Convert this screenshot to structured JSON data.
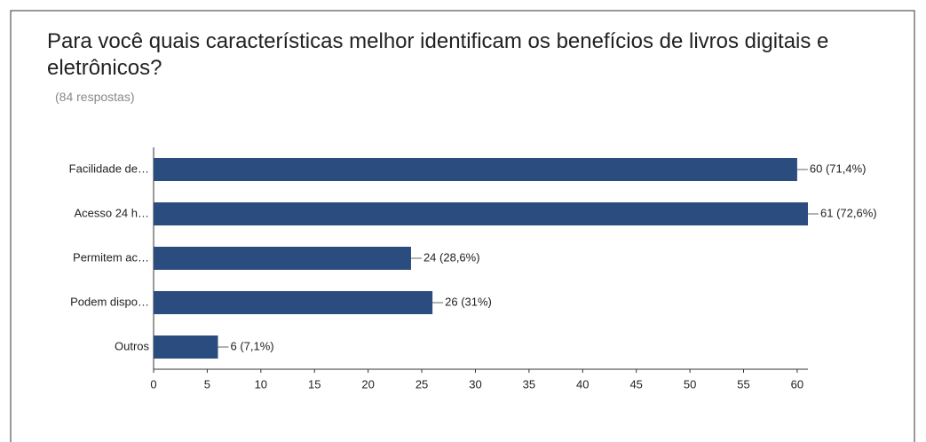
{
  "chart_data": {
    "type": "bar",
    "orientation": "horizontal",
    "title": "Para você quais características melhor identificam os benefícios de livros digitais e eletrônicos?",
    "subtitle": "(84 respostas)",
    "categories": [
      "Facilidade de…",
      "Acesso 24 h…",
      "Permitem ac…",
      "Podem dispo…",
      "Outros"
    ],
    "values": [
      60,
      61,
      24,
      26,
      6
    ],
    "value_labels": [
      "60 (71,4%)",
      "61 (72,6%)",
      "24 (28,6%)",
      "26 (31%)",
      "6 (7,1%)"
    ],
    "color": "#2b4c7e",
    "xlim": [
      0,
      61
    ],
    "xticks": [
      0,
      5,
      10,
      15,
      20,
      25,
      30,
      35,
      40,
      45,
      50,
      55,
      60
    ]
  }
}
